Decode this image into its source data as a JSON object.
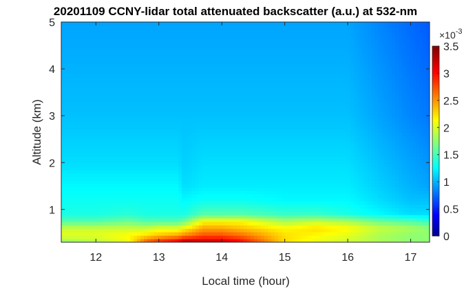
{
  "chart_data": {
    "type": "heatmap",
    "title": "20201109 CCNY-lidar total attenuated backscatter (a.u.) at 532-nm",
    "xlabel": "Local time (hour)",
    "ylabel": "Altitude (km)",
    "xlim": [
      11.45,
      17.3
    ],
    "ylim": [
      0.3,
      5
    ],
    "x_ticks": [
      12,
      13,
      14,
      15,
      16,
      17
    ],
    "x_tick_labels": [
      "12",
      "13",
      "14",
      "15",
      "16",
      "17"
    ],
    "y_ticks": [
      1,
      2,
      3,
      4,
      5
    ],
    "y_tick_labels": [
      "1",
      "2",
      "3",
      "4",
      "5"
    ],
    "colormap": "jet",
    "colorbar": {
      "min": 0,
      "max": 3.5,
      "ticks": [
        0,
        0.5,
        1,
        1.5,
        2,
        2.5,
        3,
        3.5
      ],
      "tick_labels": [
        "0",
        "0.5",
        "1",
        "1.5",
        "2",
        "2.5",
        "3",
        "3.5"
      ],
      "exponent_label": "×10",
      "exponent_power": "-3"
    },
    "profile_altitudes_km": [
      0.3,
      0.45,
      0.6,
      0.75,
      0.9,
      1.2,
      1.5,
      2,
      3,
      4,
      5
    ],
    "profiles": [
      {
        "time": 11.5,
        "values": [
          1.8,
          2.1,
          2.0,
          1.6,
          1.4,
          1.35,
          1.3,
          1.2,
          1.1,
          1.05,
          1.0
        ]
      },
      {
        "time": 12.0,
        "values": [
          1.9,
          2.1,
          2.0,
          1.6,
          1.4,
          1.35,
          1.3,
          1.2,
          1.1,
          1.05,
          1.0
        ]
      },
      {
        "time": 12.5,
        "values": [
          2.1,
          2.2,
          2.0,
          1.7,
          1.45,
          1.35,
          1.3,
          1.2,
          1.1,
          1.05,
          1.0
        ]
      },
      {
        "time": 12.8,
        "values": [
          2.8,
          2.3,
          2.0,
          1.6,
          1.4,
          1.35,
          1.3,
          1.2,
          1.1,
          1.05,
          1.0
        ]
      },
      {
        "time": 13.0,
        "values": [
          3.0,
          2.4,
          2.1,
          1.6,
          1.4,
          1.35,
          1.3,
          1.2,
          1.1,
          1.05,
          1.0
        ]
      },
      {
        "time": 13.3,
        "values": [
          3.2,
          2.5,
          2.1,
          1.6,
          1.4,
          1.35,
          1.3,
          1.2,
          1.1,
          1.05,
          1.0
        ]
      },
      {
        "time": 13.4,
        "values": [
          3.4,
          2.6,
          2.2,
          1.7,
          1.4,
          1.3,
          1.2,
          1.15,
          1.1,
          1.05,
          1.0
        ]
      },
      {
        "time": 13.7,
        "values": [
          3.3,
          2.8,
          2.5,
          2.2,
          1.6,
          1.35,
          1.25,
          1.2,
          1.1,
          1.05,
          1.0
        ]
      },
      {
        "time": 14.0,
        "values": [
          3.3,
          2.8,
          2.5,
          2.2,
          1.6,
          1.35,
          1.25,
          1.2,
          1.1,
          1.05,
          1.0
        ]
      },
      {
        "time": 14.3,
        "values": [
          3.1,
          2.7,
          2.4,
          2.2,
          1.6,
          1.35,
          1.25,
          1.2,
          1.1,
          1.05,
          1.0
        ]
      },
      {
        "time": 15.0,
        "values": [
          2.3,
          2.3,
          2.2,
          1.9,
          1.5,
          1.3,
          1.25,
          1.2,
          1.1,
          1.05,
          1.0
        ]
      },
      {
        "time": 15.5,
        "values": [
          2.1,
          2.2,
          2.3,
          2.0,
          1.5,
          1.3,
          1.25,
          1.2,
          1.1,
          1.05,
          1.0
        ]
      },
      {
        "time": 16.0,
        "values": [
          2.0,
          2.1,
          2.2,
          1.9,
          1.4,
          1.3,
          1.25,
          1.2,
          1.1,
          1.05,
          1.0
        ]
      },
      {
        "time": 16.5,
        "values": [
          1.9,
          1.9,
          2.0,
          1.7,
          1.3,
          1.2,
          1.15,
          1.1,
          1.0,
          0.95,
          0.9
        ]
      },
      {
        "time": 17.0,
        "values": [
          1.8,
          1.8,
          1.9,
          1.6,
          1.2,
          1.1,
          1.05,
          1.0,
          0.9,
          0.85,
          0.8
        ]
      },
      {
        "time": 17.3,
        "values": [
          1.8,
          1.8,
          1.8,
          1.5,
          1.2,
          1.1,
          1.0,
          0.95,
          0.85,
          0.8,
          0.75
        ]
      }
    ]
  }
}
